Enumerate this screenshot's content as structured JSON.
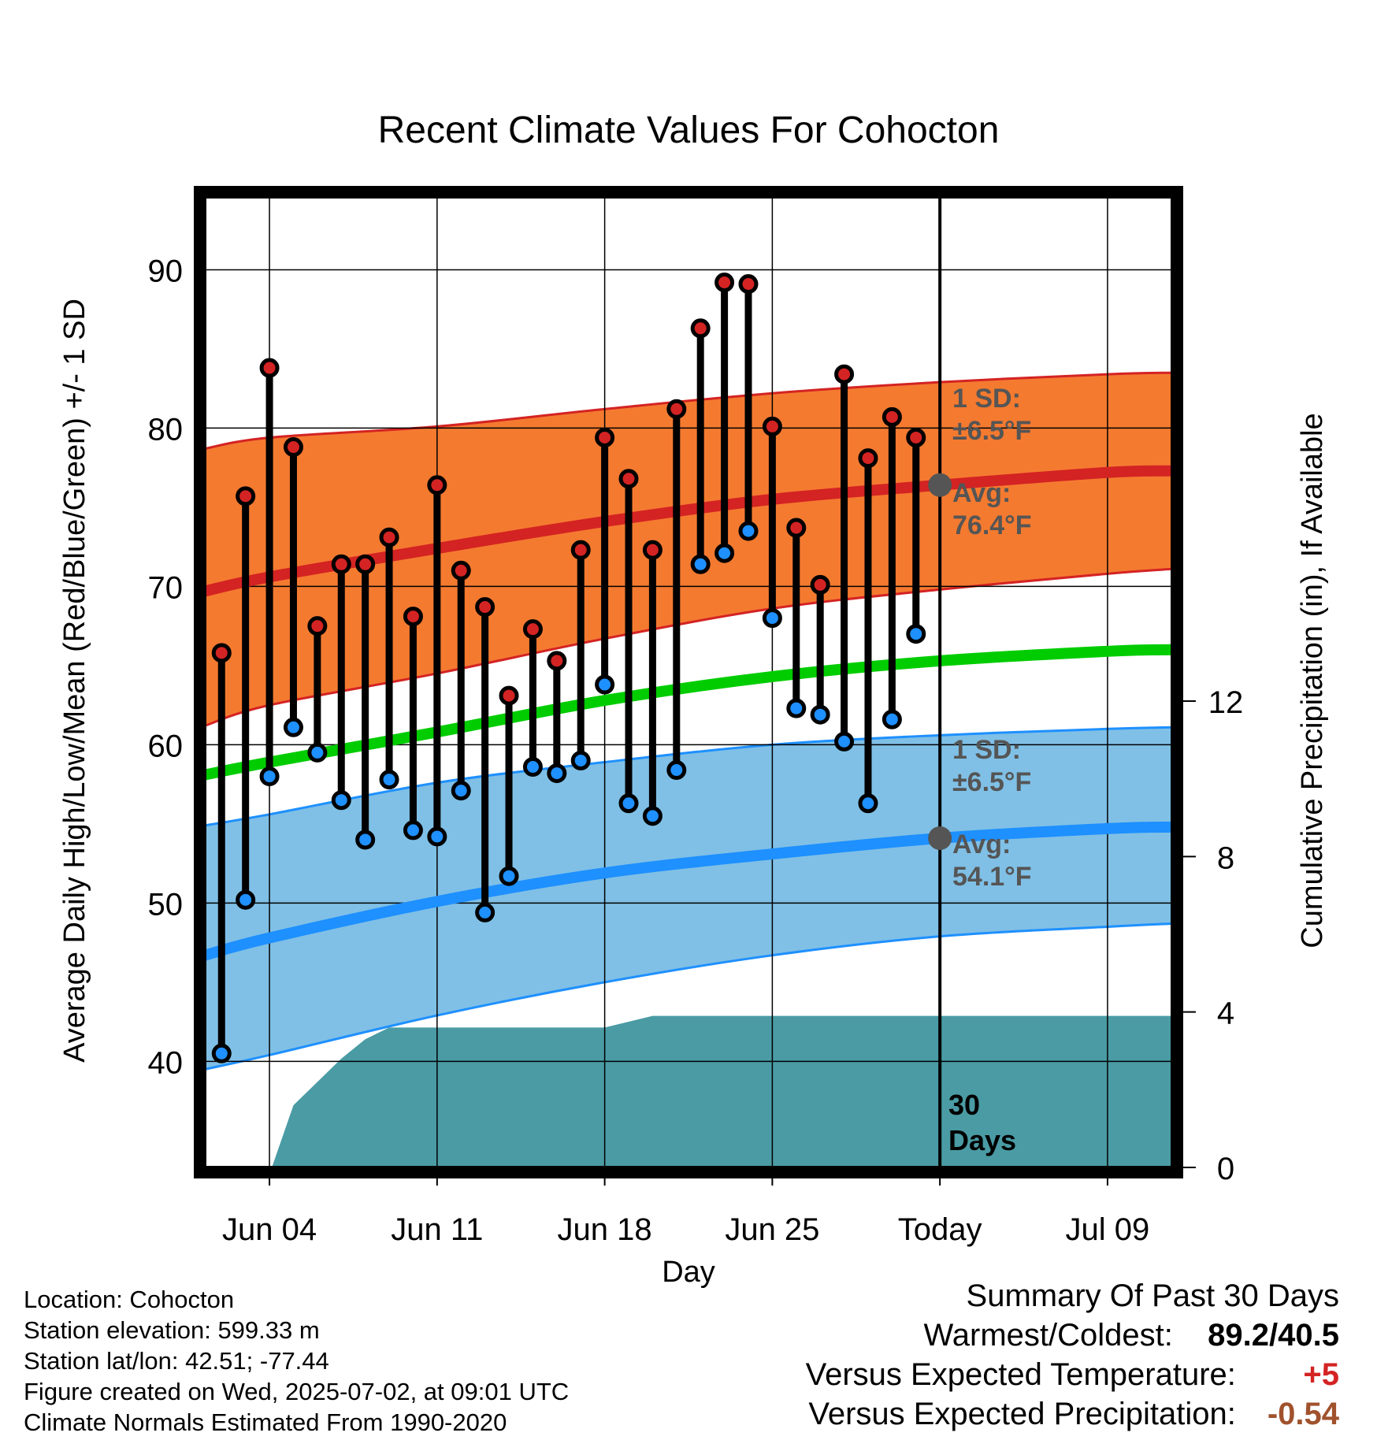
{
  "title": "Recent Climate Values For Cohocton",
  "chart_data": {
    "type": "line",
    "title": "Recent Climate Values For Cohocton",
    "xlabel": "Day",
    "ylabel": "Average Daily High/Low/Mean (Red/Blue/Green) +/- 1 SD",
    "y2label": "Cumulative Precipitation (in), If Available",
    "ylim": [
      33.3,
      94.6
    ],
    "y2lim": [
      0,
      12
    ],
    "y_ticks": [
      "40",
      "50",
      "60",
      "70",
      "80",
      "90"
    ],
    "y2_ticks": [
      "0",
      "4",
      "8",
      "12"
    ],
    "x_ticks": [
      "Jun 04",
      "Jun 11",
      "Jun 18",
      "Jun 25",
      "Today",
      "Jul 09"
    ],
    "x_tick_days": [
      4,
      11,
      18,
      25,
      32,
      39
    ],
    "xlim": [
      1.3,
      41.7
    ],
    "today_day": 32,
    "today_label_lines": [
      "30",
      "Days"
    ],
    "days": [
      2,
      3,
      4,
      5,
      6,
      7,
      8,
      9,
      10,
      11,
      12,
      13,
      14,
      15,
      16,
      17,
      18,
      19,
      20,
      21,
      22,
      23,
      24,
      25,
      26,
      27,
      28,
      29,
      30,
      31
    ],
    "observed_highs": [
      65.8,
      75.7,
      83.8,
      78.8,
      67.5,
      71.4,
      71.4,
      73.1,
      68.1,
      76.4,
      71.0,
      68.7,
      63.1,
      67.3,
      65.3,
      72.3,
      79.4,
      76.8,
      72.3,
      81.2,
      86.3,
      89.2,
      89.1,
      80.1,
      73.7,
      70.1,
      83.4,
      78.1,
      80.7,
      79.4
    ],
    "observed_lows": [
      40.5,
      50.2,
      58.0,
      61.1,
      59.5,
      56.5,
      54.0,
      57.8,
      54.6,
      54.2,
      57.1,
      49.4,
      51.7,
      58.6,
      58.2,
      59.0,
      63.8,
      56.3,
      55.5,
      58.4,
      71.4,
      72.1,
      73.5,
      68.0,
      62.3,
      61.9,
      60.2,
      56.3,
      61.6,
      67.0
    ],
    "normals": {
      "x": [
        1.3,
        4,
        11,
        18,
        25,
        32,
        39,
        41.7
      ],
      "high_avg": [
        69.7,
        70.6,
        72.4,
        74.1,
        75.5,
        76.4,
        77.2,
        77.3
      ],
      "high_upper": [
        78.7,
        79.4,
        80.1,
        81.2,
        82.2,
        82.9,
        83.4,
        83.5
      ],
      "high_lower": [
        61.2,
        62.5,
        64.5,
        66.7,
        68.6,
        69.8,
        70.8,
        71.1
      ],
      "mean_avg": [
        58.1,
        58.9,
        60.8,
        62.8,
        64.3,
        65.3,
        65.9,
        66.0
      ],
      "low_avg": [
        46.7,
        47.8,
        50.1,
        51.9,
        53.1,
        54.1,
        54.7,
        54.8
      ],
      "low_upper": [
        54.9,
        55.6,
        57.6,
        58.9,
        60.0,
        60.6,
        61.0,
        61.1
      ],
      "low_lower": [
        39.5,
        40.4,
        42.9,
        45.0,
        46.7,
        47.9,
        48.5,
        48.7
      ]
    },
    "precip": {
      "x": [
        4.1,
        5,
        6,
        7,
        8,
        9,
        10,
        11,
        12,
        13,
        14,
        15,
        16,
        17,
        18,
        19,
        20,
        25,
        30,
        32,
        41.7
      ],
      "y": [
        0.0,
        1.6,
        2.2,
        2.8,
        3.3,
        3.6,
        3.6,
        3.6,
        3.6,
        3.6,
        3.6,
        3.6,
        3.6,
        3.6,
        3.6,
        3.75,
        3.9,
        3.9,
        3.9,
        3.9,
        3.9
      ]
    },
    "high_band_label": [
      "1 SD:",
      "±6.5°F",
      "Avg:",
      "76.4°F"
    ],
    "low_band_label": [
      "1 SD:",
      "±6.5°F",
      "Avg:",
      "54.1°F"
    ],
    "colors": {
      "high_band": "#f47a30",
      "high_line": "#d42323",
      "low_band": "#80c0e6",
      "low_line": "#1e90ff",
      "mean_line": "#00cc00",
      "precip": "#4a9ba4",
      "high_marker": "#d42323",
      "low_marker": "#1e90ff",
      "today_marker": "#555555"
    }
  },
  "info": {
    "location": "Location: Cohocton",
    "elevation": "Station elevation: 599.33 m",
    "latlon": "Station lat/lon: 42.51; -77.44",
    "created": "Figure created on Wed, 2025-07-02, at 09:01 UTC",
    "normals": "Climate Normals Estimated From 1990-2020"
  },
  "summary": {
    "heading": "Summary Of Past 30 Days",
    "warm_label": "Warmest/Coldest:",
    "warm_value": "89.2/40.5",
    "temp_label": "Versus Expected Temperature:",
    "temp_value": "+5",
    "temp_color": "#d42323",
    "precip_label": "Versus Expected Precipitation:",
    "precip_value": "-0.54",
    "precip_color": "#a0522d"
  }
}
